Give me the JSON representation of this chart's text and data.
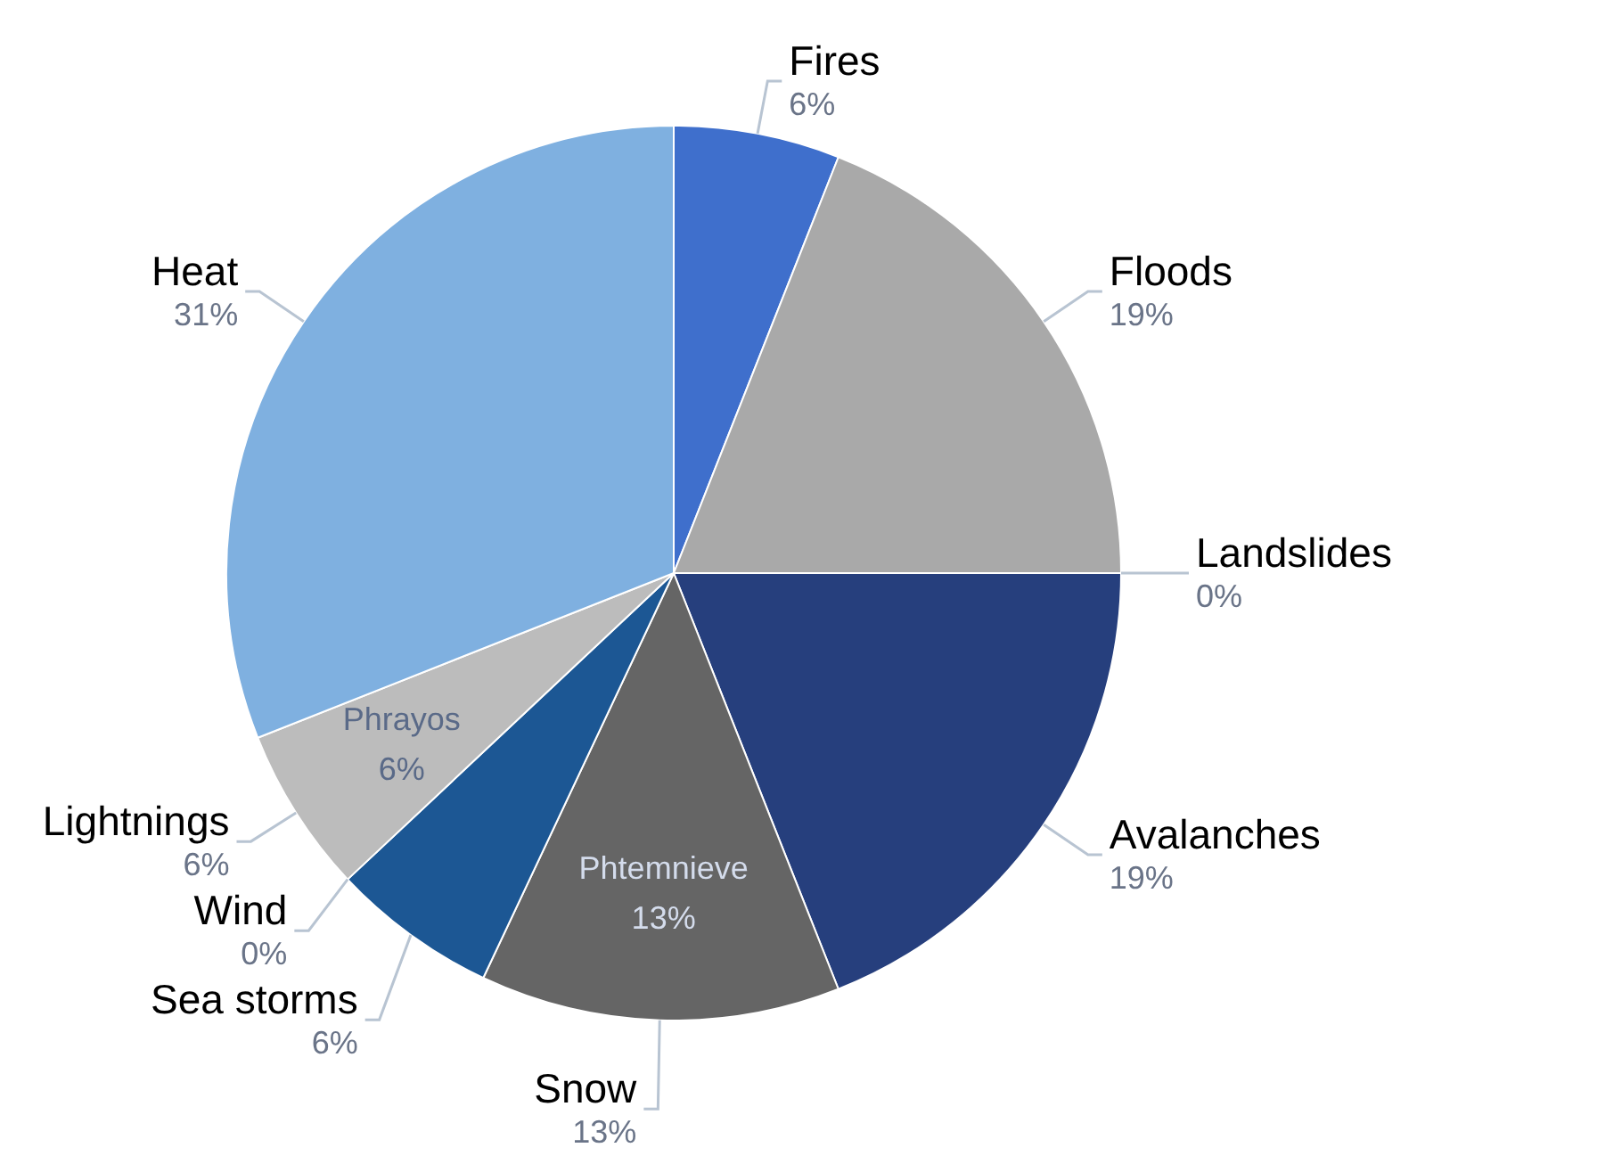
{
  "chart_data": {
    "type": "pie",
    "categories": [
      "Fires",
      "Floods",
      "Landslides",
      "Avalanches",
      "Snow",
      "Sea storms",
      "Wind",
      "Lightnings",
      "Heat"
    ],
    "values": [
      6,
      19,
      0,
      19,
      13,
      6,
      0,
      6,
      31
    ],
    "value_labels": [
      "6%",
      "19%",
      "0%",
      "19%",
      "13%",
      "6%",
      "0%",
      "6%",
      "31%"
    ],
    "colors": [
      "#3f6fcc",
      "#a9a9a9",
      "#4a5a88",
      "#263f7d",
      "#656565",
      "#1c5794",
      "#2f5f9c",
      "#bcbcbc",
      "#7fb0e0"
    ],
    "annotations": [
      {
        "text": "Phrayos 6%",
        "x": "Lightnings"
      },
      {
        "text": "Phtemnieve 13%",
        "x": "Snow"
      }
    ]
  }
}
